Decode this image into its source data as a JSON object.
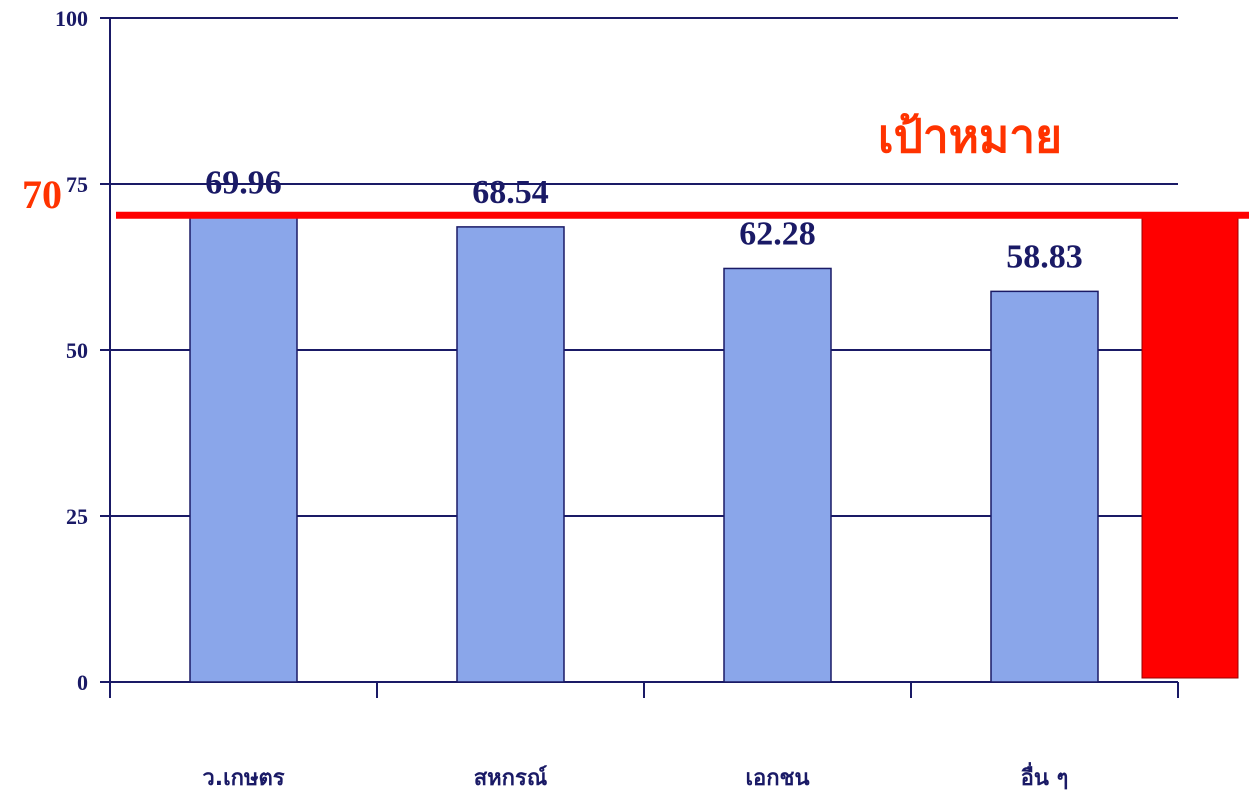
{
  "chart_data": {
    "type": "bar",
    "categories": [
      "ว.เกษตร",
      "สหกรณ์",
      "เอกชน",
      "อื่น ๆ"
    ],
    "values": [
      69.96,
      68.54,
      62.28,
      58.83
    ],
    "value_labels": [
      "69.96",
      "68.54",
      "62.28",
      "58.83"
    ],
    "ylim": [
      0,
      100
    ],
    "yticks": [
      0,
      25,
      50,
      75,
      100
    ],
    "ytick_labels": [
      "0",
      "25",
      "50",
      "75",
      "100"
    ],
    "grid": true,
    "bar_color": "#8aa6ea",
    "bar_edge_color": "#1a1a66",
    "axis_color": "#1a1a66",
    "target": {
      "value": 70,
      "value_label": "70",
      "label": "เป้าหมาย",
      "color": "#ff0000",
      "label_color": "#ff3300",
      "value_color": "#ff3300"
    }
  }
}
